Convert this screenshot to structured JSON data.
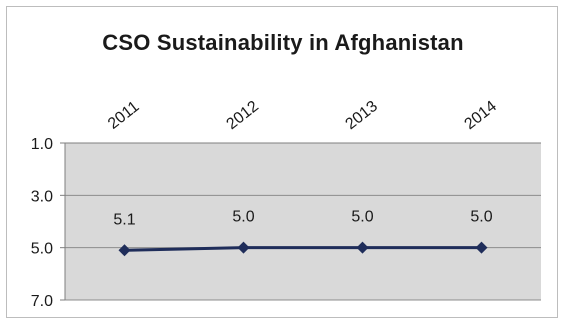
{
  "chart_data": {
    "type": "line",
    "title": "CSO Sustainability in Afghanistan",
    "categories": [
      "2011",
      "2012",
      "2013",
      "2014"
    ],
    "series": [
      {
        "values": [
          5.1,
          5.0,
          5.0,
          5.0
        ],
        "data_labels": [
          "5.1",
          "5.0",
          "5.0",
          "5.0"
        ],
        "color": "#1f2d5a"
      }
    ],
    "y_ticks": [
      1.0,
      3.0,
      5.0,
      7.0
    ],
    "y_tick_labels": [
      "1.0",
      "3.0",
      "5.0",
      "7.0"
    ],
    "ylim": [
      1.0,
      7.0
    ],
    "y_inverted": true,
    "x_axis_position": "top",
    "x_labels_rotation": "diagonal",
    "grid": true,
    "plot_background": "#d9d9d9",
    "legend": "none"
  }
}
